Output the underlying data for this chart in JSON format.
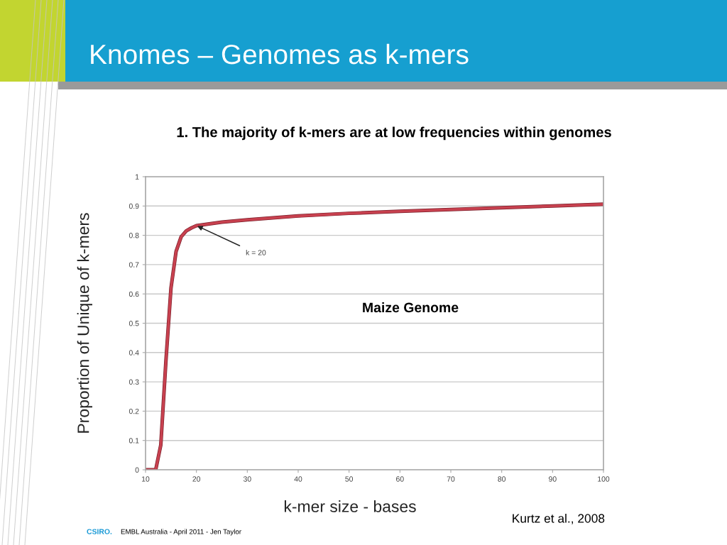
{
  "chart_data": {
    "type": "line",
    "title": "Knomes – Genomes as k-mers",
    "subtitle": "1. The majority of k-mers are at low frequencies within genomes",
    "xlabel": "k-mer size - bases",
    "ylabel": "Proportion of Unique of k-mers",
    "x": [
      10,
      11,
      12,
      13,
      14,
      15,
      16,
      17,
      18,
      19,
      20,
      25,
      30,
      40,
      50,
      60,
      70,
      80,
      90,
      100
    ],
    "values": [
      0,
      0,
      0,
      0.085,
      0.37,
      0.62,
      0.745,
      0.795,
      0.815,
      0.825,
      0.833,
      0.845,
      0.853,
      0.866,
      0.875,
      0.882,
      0.888,
      0.894,
      0.9,
      0.906
    ],
    "color": "#c8414f",
    "xlim": [
      10,
      100
    ],
    "xticks": [
      10,
      20,
      30,
      40,
      50,
      60,
      70,
      80,
      90,
      100
    ],
    "ylim": [
      0,
      1
    ],
    "yticks": [
      0,
      0.1,
      0.2,
      0.3,
      0.4,
      0.5,
      0.6,
      0.7,
      0.8,
      0.9,
      1
    ],
    "grid": "y",
    "annotations": [
      {
        "text": "k = 20",
        "x": 20,
        "y": 0.833
      },
      "Maize Genome",
      "Kurtz et al., 2008",
      "CSIRO.",
      "EMBL Australia - April 2011 - Jen Taylor"
    ]
  }
}
